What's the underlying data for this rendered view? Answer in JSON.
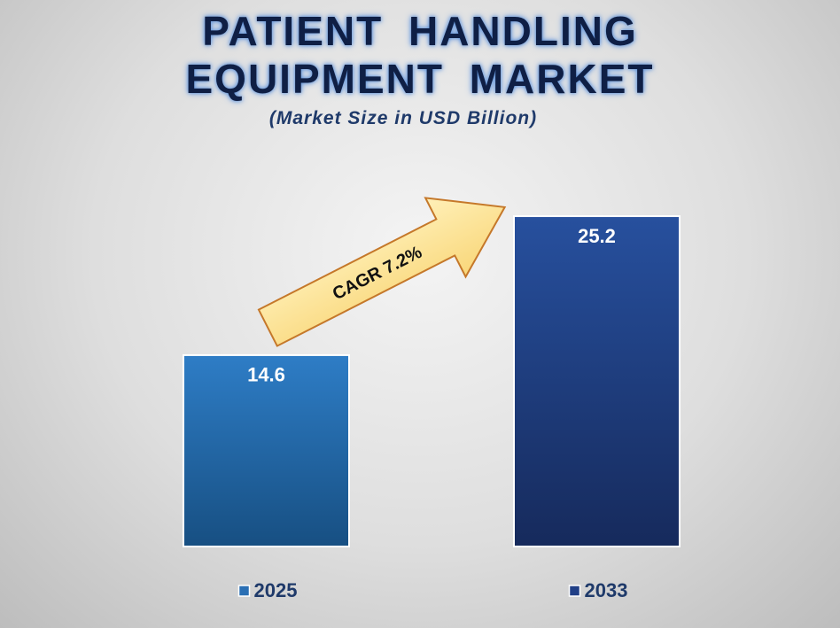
{
  "chart_data": {
    "type": "bar",
    "title": "PATIENT HANDLING EQUIPMENT MARKET",
    "subtitle": "(Market Size in USD Billion)",
    "annotation": "CAGR 7.2%",
    "categories": [
      "2025",
      "2033"
    ],
    "values": [
      14.6,
      25.2
    ],
    "colors": [
      "#2a6fb4",
      "#203f86"
    ]
  }
}
